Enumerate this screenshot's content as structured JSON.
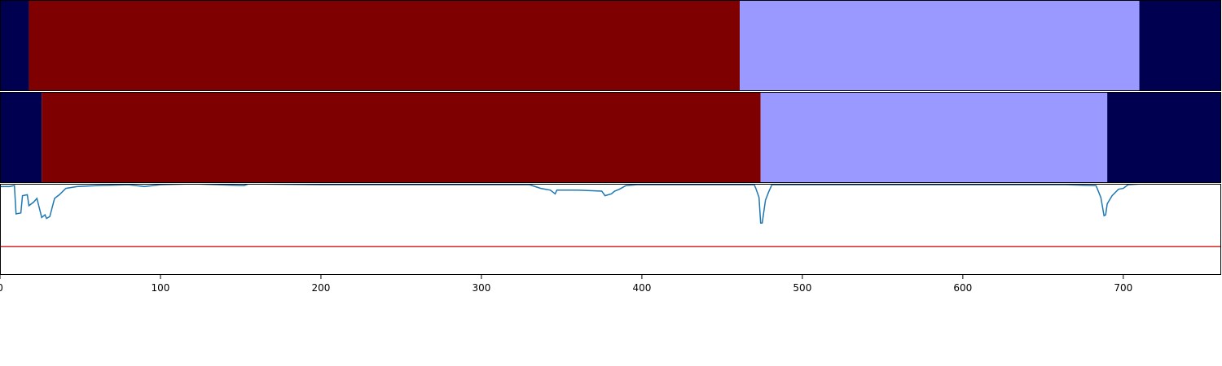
{
  "chart_data": [
    {
      "type": "segment-bar",
      "xlim": [
        0,
        761
      ],
      "segments": [
        {
          "start": 0,
          "end": 18,
          "color": "#000050"
        },
        {
          "start": 18,
          "end": 461,
          "color": "#7f0000"
        },
        {
          "start": 461,
          "end": 710,
          "color": "#9999ff"
        },
        {
          "start": 710,
          "end": 761,
          "color": "#000050"
        }
      ]
    },
    {
      "type": "segment-bar",
      "xlim": [
        0,
        761
      ],
      "segments": [
        {
          "start": 0,
          "end": 26,
          "color": "#000050"
        },
        {
          "start": 26,
          "end": 474,
          "color": "#7f0000"
        },
        {
          "start": 474,
          "end": 690,
          "color": "#9999ff"
        },
        {
          "start": 690,
          "end": 761,
          "color": "#000050"
        }
      ]
    },
    {
      "type": "line",
      "xlim": [
        0,
        761
      ],
      "ylim": [
        0,
        1
      ],
      "x_ticks": [
        0,
        100,
        200,
        300,
        400,
        500,
        600,
        700
      ],
      "threshold": {
        "value": 0.31,
        "color": "#d62728"
      },
      "series": [
        {
          "color": "#1f77b4",
          "points": [
            [
              0,
              0.97
            ],
            [
              6,
              0.97
            ],
            [
              9,
              0.98
            ],
            [
              10,
              0.67
            ],
            [
              13,
              0.68
            ],
            [
              14,
              0.87
            ],
            [
              17,
              0.88
            ],
            [
              18,
              0.76
            ],
            [
              21,
              0.8
            ],
            [
              23,
              0.84
            ],
            [
              24,
              0.77
            ],
            [
              26,
              0.63
            ],
            [
              28,
              0.66
            ],
            [
              29,
              0.62
            ],
            [
              31,
              0.64
            ],
            [
              34,
              0.84
            ],
            [
              37,
              0.88
            ],
            [
              41,
              0.95
            ],
            [
              48,
              0.97
            ],
            [
              60,
              0.98
            ],
            [
              80,
              0.99
            ],
            [
              90,
              0.97
            ],
            [
              100,
              0.99
            ],
            [
              120,
              1.0
            ],
            [
              152,
              0.98
            ],
            [
              155,
              1.0
            ],
            [
              200,
              0.99
            ],
            [
              330,
              0.99
            ],
            [
              337,
              0.95
            ],
            [
              343,
              0.93
            ],
            [
              346,
              0.89
            ],
            [
              347,
              0.93
            ],
            [
              360,
              0.93
            ],
            [
              375,
              0.92
            ],
            [
              377,
              0.87
            ],
            [
              381,
              0.89
            ],
            [
              383,
              0.92
            ],
            [
              386,
              0.94
            ],
            [
              390,
              0.98
            ],
            [
              397,
              0.99
            ],
            [
              470,
              0.99
            ],
            [
              471,
              0.95
            ],
            [
              473,
              0.85
            ],
            [
              474,
              0.57
            ],
            [
              475,
              0.57
            ],
            [
              477,
              0.82
            ],
            [
              479,
              0.91
            ],
            [
              481,
              0.99
            ],
            [
              561,
              0.99
            ],
            [
              600,
              0.99
            ],
            [
              633,
              0.99
            ],
            [
              664,
              0.99
            ],
            [
              683,
              0.98
            ],
            [
              686,
              0.85
            ],
            [
              688,
              0.65
            ],
            [
              689,
              0.66
            ],
            [
              690,
              0.78
            ],
            [
              693,
              0.87
            ],
            [
              697,
              0.94
            ],
            [
              700,
              0.95
            ],
            [
              703,
              0.99
            ],
            [
              712,
              1.0
            ],
            [
              716,
              1.0
            ]
          ]
        }
      ]
    }
  ]
}
